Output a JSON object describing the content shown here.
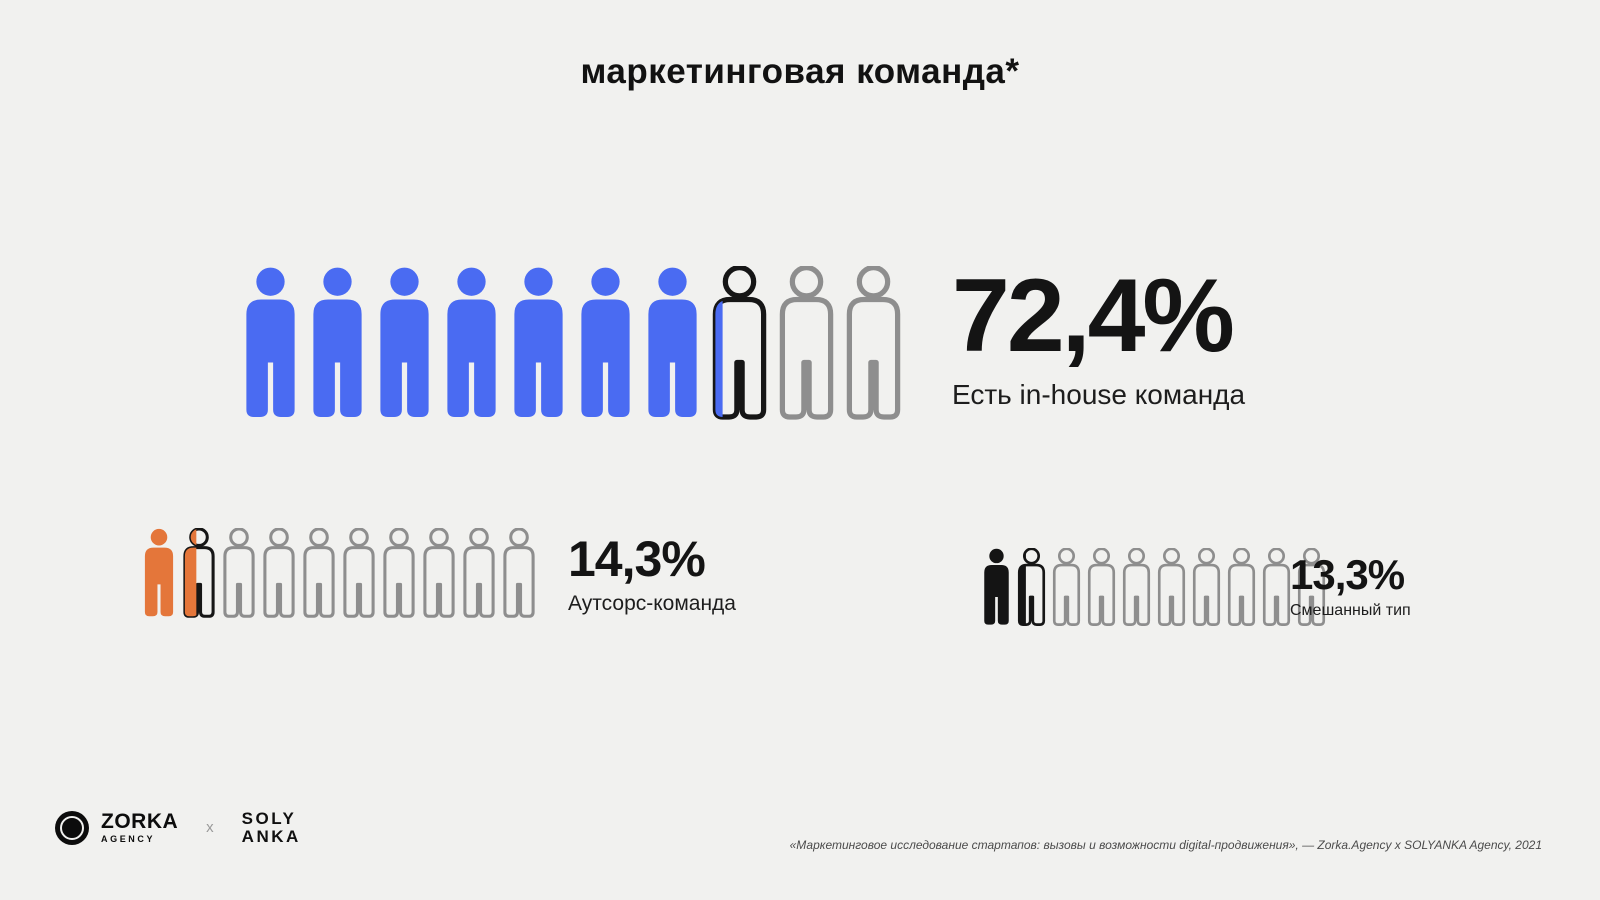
{
  "title": "маркетинговая команда*",
  "chart_data": {
    "type": "pictogram",
    "title": "маркетинговая команда*",
    "icons_per_group": 10,
    "unit_percent_per_icon": 10,
    "outline_color": "#8e8e8e",
    "partial_outline_color": "#161616",
    "groups": [
      {
        "name": "in-house",
        "label": "Есть in-house команда",
        "value_percent": 72.4,
        "value_label": "72,4%",
        "fill_color": "#4a6bf2",
        "filled_icons": 7.24
      },
      {
        "name": "outsource",
        "label": "Аутсорс-команда",
        "value_percent": 14.3,
        "value_label": "14,3%",
        "fill_color": "#e4763a",
        "filled_icons": 1.43
      },
      {
        "name": "mixed",
        "label": "Смешанный тип",
        "value_percent": 13.3,
        "value_label": "13,3%",
        "fill_color": "#141414",
        "filled_icons": 1.33
      }
    ]
  },
  "footer": {
    "zorka_logo_text": "ZORKA",
    "zorka_logo_subtext": "AGENCY",
    "separator": "x",
    "solyanka_line1": "SOLY",
    "solyanka_line2": "ANKA",
    "footnote": "«Маркетинговое исследование стартапов: вызовы и возможности digital-продвижения», — Zorka.Agency x SOLYANKA Agency, 2021"
  }
}
